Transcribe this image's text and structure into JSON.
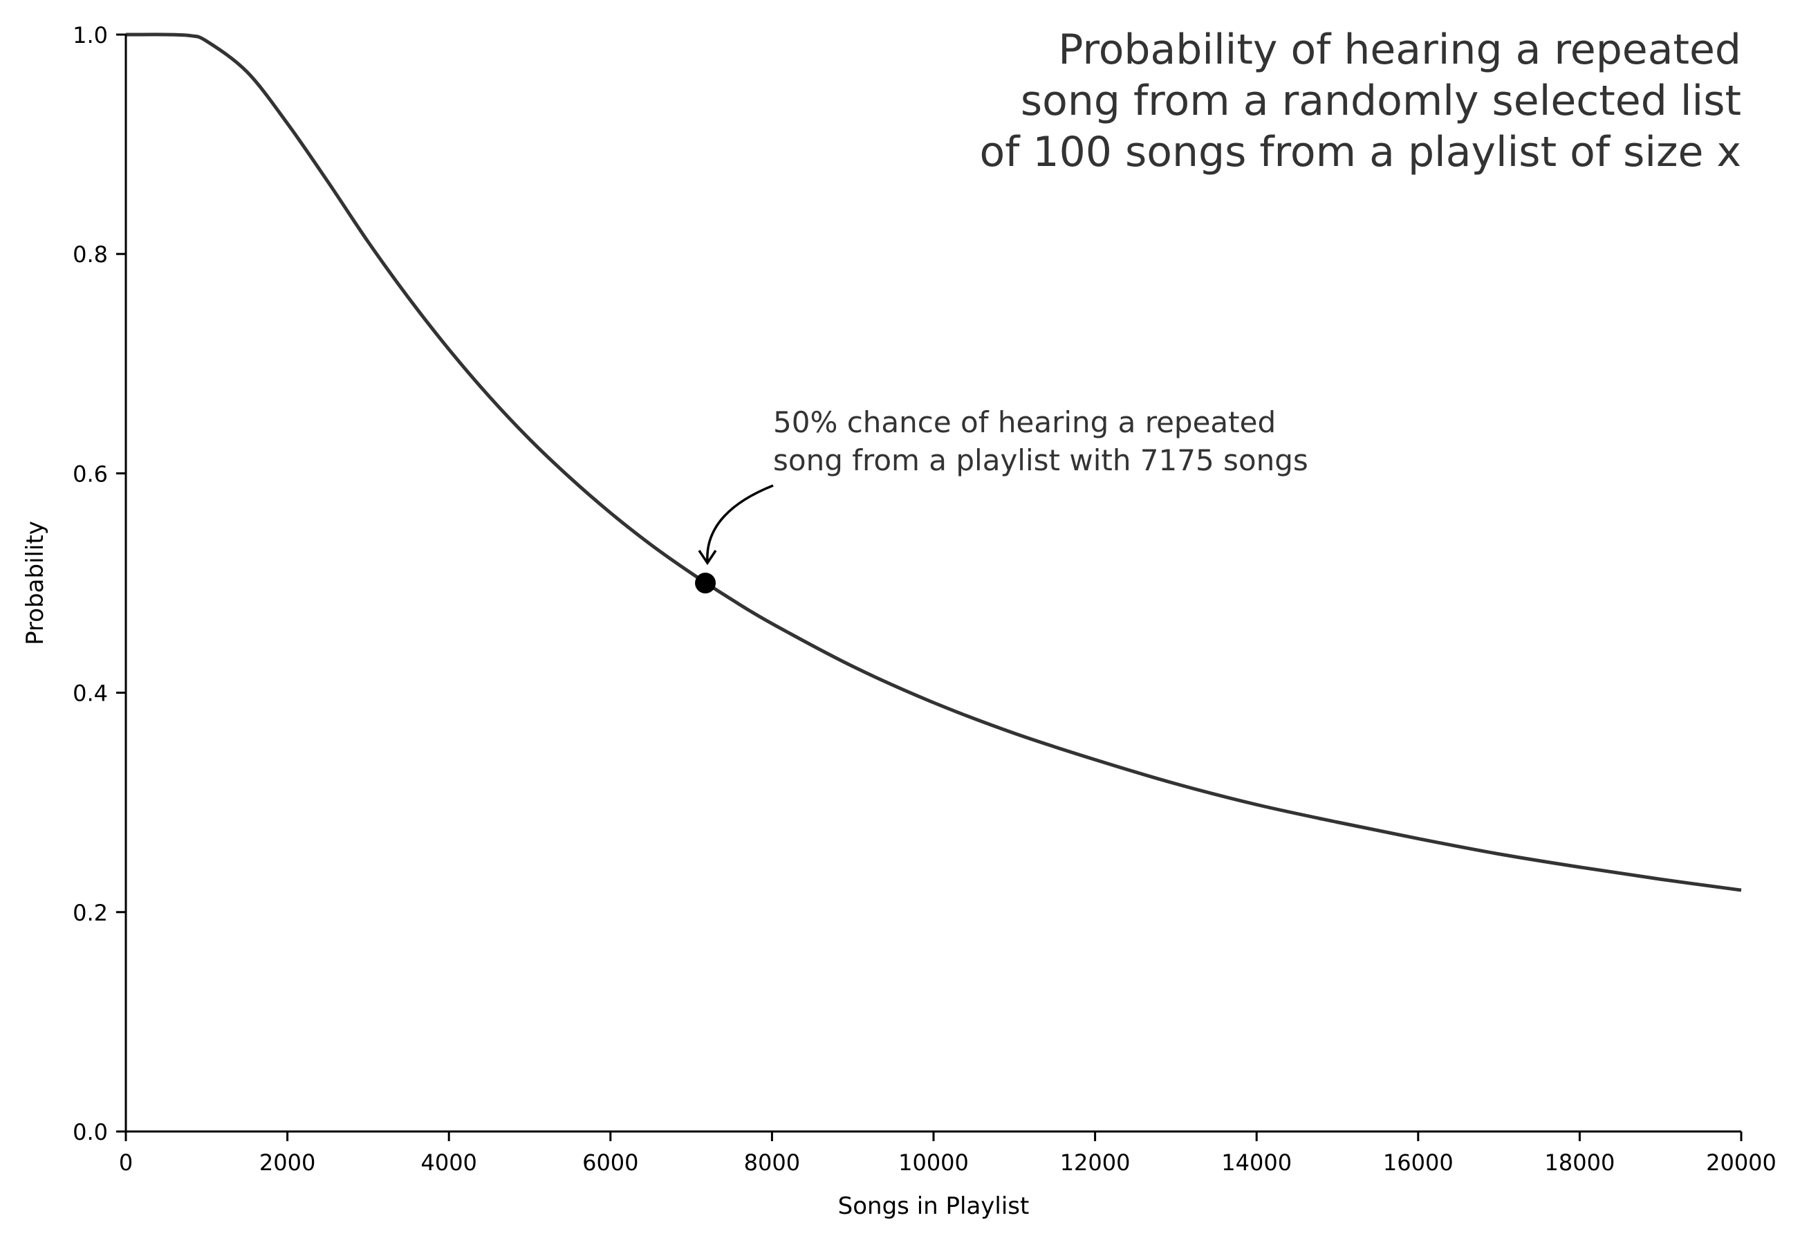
{
  "chart_data": {
    "type": "line",
    "title_lines": [
      "Probability of hearing a repeated",
      "song from a randomly selected list",
      "of 100 songs from a playlist of size x"
    ],
    "xlabel": "Songs in Playlist",
    "ylabel": "Probability",
    "xlim": [
      0,
      20000
    ],
    "ylim": [
      0,
      1.0
    ],
    "xticks": [
      "0",
      "2000",
      "4000",
      "6000",
      "8000",
      "10000",
      "12000",
      "14000",
      "16000",
      "18000",
      "20000"
    ],
    "yticks": [
      "0.0",
      "0.2",
      "0.4",
      "0.6",
      "0.8",
      "1.0"
    ],
    "grid": false,
    "line_color": "#333333",
    "series": [
      {
        "name": "probability",
        "x": [
          0,
          100,
          500,
          800,
          1000,
          1500,
          2000,
          2500,
          3000,
          3500,
          4000,
          4500,
          5000,
          5500,
          6000,
          6500,
          7000,
          7500,
          8000,
          9000,
          10000,
          11000,
          12000,
          13000,
          14000,
          15000,
          16000,
          17000,
          18000,
          19000,
          20000
        ],
        "y": [
          1.0,
          1.0,
          1.0,
          0.999,
          0.994,
          0.966,
          0.919,
          0.866,
          0.811,
          0.76,
          0.713,
          0.67,
          0.631,
          0.596,
          0.564,
          0.535,
          0.509,
          0.485,
          0.463,
          0.424,
          0.391,
          0.363,
          0.339,
          0.317,
          0.298,
          0.282,
          0.267,
          0.253,
          0.241,
          0.23,
          0.22
        ]
      }
    ],
    "highlight_point": {
      "x": 7175,
      "y": 0.5
    },
    "annotation_lines": [
      "50% chance of hearing a repeated",
      "song from a playlist with 7175 songs"
    ]
  }
}
